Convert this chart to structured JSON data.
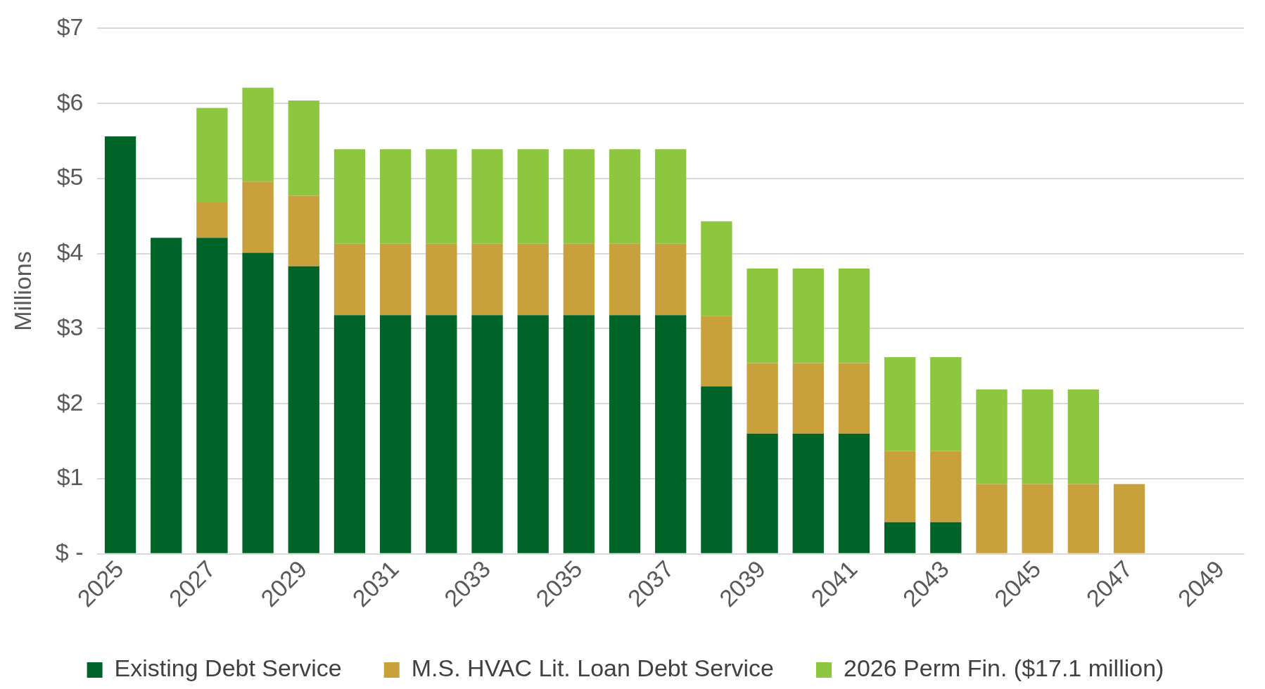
{
  "chart_data": {
    "type": "bar",
    "stacked": true,
    "ylabel": "Millions",
    "grid": "y",
    "legend": "bottom",
    "categories": [
      "2025",
      null,
      "2027",
      null,
      "2029",
      null,
      "2031",
      null,
      "2033",
      null,
      "2035",
      null,
      "2037",
      null,
      "2039",
      null,
      "2041",
      null,
      "2043",
      null,
      "2045",
      null,
      "2047",
      null,
      "2049"
    ],
    "ylim": [
      0,
      7
    ],
    "yticks": [
      {
        "value": 0,
        "label": "$ -"
      },
      {
        "value": 1,
        "label": "$1"
      },
      {
        "value": 2,
        "label": "$2"
      },
      {
        "value": 3,
        "label": "$3"
      },
      {
        "value": 4,
        "label": "$4"
      },
      {
        "value": 5,
        "label": "$5"
      },
      {
        "value": 6,
        "label": "$6"
      },
      {
        "value": 7,
        "label": "$7"
      }
    ],
    "series": [
      {
        "name": "Existing Debt Service",
        "color": "#006428",
        "values": [
          5.56,
          4.21,
          4.21,
          4.01,
          3.83,
          3.18,
          3.18,
          3.18,
          3.18,
          3.18,
          3.18,
          3.18,
          3.18,
          2.23,
          1.6,
          1.6,
          1.6,
          0.42,
          0.42,
          0,
          0,
          0,
          0,
          0,
          0
        ]
      },
      {
        "name": "M.S. HVAC Lit. Loan Debt Service",
        "color": "#c8a03c",
        "values": [
          0,
          0,
          0.47,
          0.95,
          0.94,
          0.95,
          0.95,
          0.95,
          0.95,
          0.95,
          0.95,
          0.95,
          0.95,
          0.94,
          0.94,
          0.94,
          0.94,
          0.95,
          0.95,
          0.93,
          0.93,
          0.93,
          0.93,
          0,
          0
        ]
      },
      {
        "name": "2026 Perm Fin. ($17.1 million)",
        "color": "#8dc63f",
        "values": [
          0,
          0,
          1.26,
          1.25,
          1.27,
          1.26,
          1.26,
          1.26,
          1.26,
          1.26,
          1.26,
          1.26,
          1.26,
          1.26,
          1.26,
          1.26,
          1.26,
          1.25,
          1.25,
          1.26,
          1.26,
          1.26,
          0,
          0,
          0
        ]
      }
    ]
  }
}
